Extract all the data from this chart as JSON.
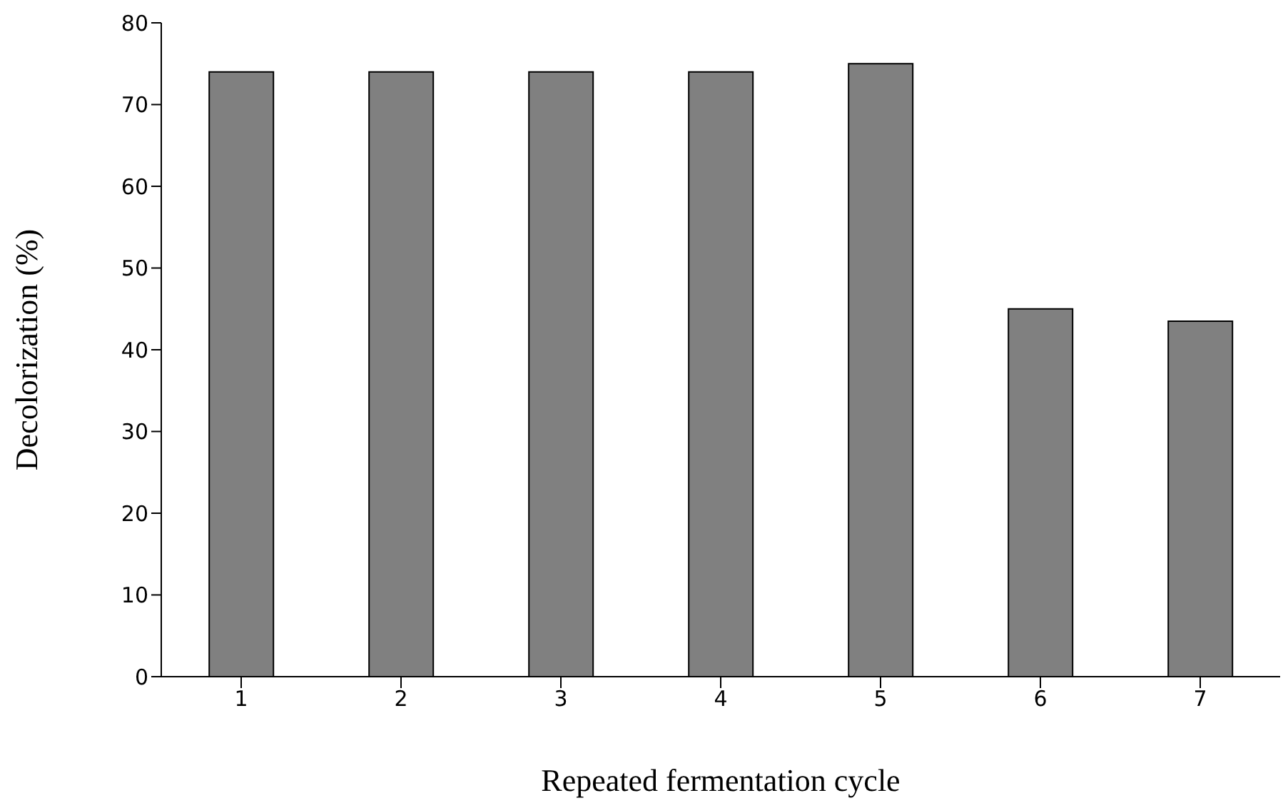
{
  "chart_data": {
    "type": "bar",
    "xlabel": "Repeated fermentation cycle",
    "ylabel": "Decolorization (%)",
    "categories": [
      "1",
      "2",
      "3",
      "4",
      "5",
      "6",
      "7"
    ],
    "values": [
      74,
      74,
      74,
      74,
      75,
      45,
      43.5
    ],
    "color": "#808080",
    "ylim": [
      0,
      80
    ],
    "yticks": [
      0,
      10,
      20,
      30,
      40,
      50,
      60,
      70,
      80
    ],
    "grid": false,
    "legend": false
  }
}
